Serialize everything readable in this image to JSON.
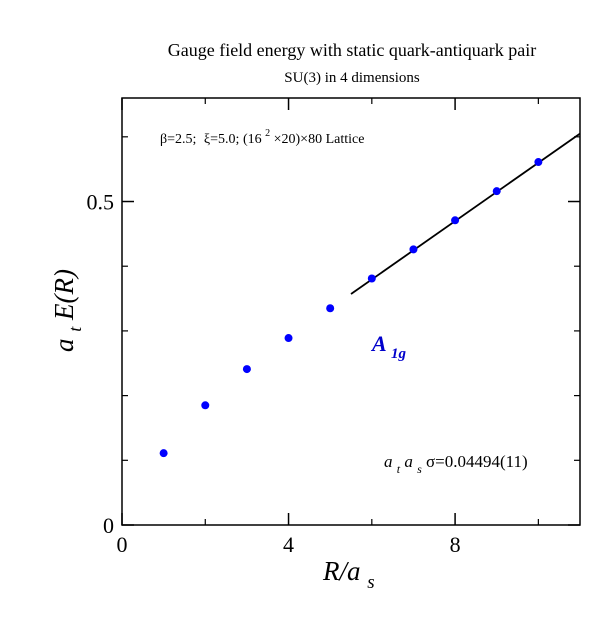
{
  "chart_data": {
    "type": "scatter",
    "title": "Gauge field energy with static quark-antiquark pair",
    "subtitle": "SU(3) in 4 dimensions",
    "xlabel": "R/a_s",
    "xlabel_parts": {
      "main": "R/a",
      "sub": "s"
    },
    "ylabel": "a_t E(R)",
    "ylabel_parts": {
      "a": "a",
      "sub": "t",
      "main": "E(R)"
    },
    "xlim": [
      0,
      11
    ],
    "ylim": [
      0,
      0.66
    ],
    "xticks": [
      0,
      4,
      8
    ],
    "xtick_labels": [
      "0",
      "4",
      "8"
    ],
    "yticks": [
      0,
      0.5
    ],
    "ytick_labels": [
      "0",
      "0.5"
    ],
    "y_minor_ticks": [
      0.1,
      0.2,
      0.3,
      0.4,
      0.6
    ],
    "x_minor_ticks": [
      2,
      6,
      10
    ],
    "grid": false,
    "colors": {
      "points": "#0000ff",
      "fit": "#000000",
      "label": "#0000cc"
    },
    "series": [
      {
        "name": "A1g",
        "values": [
          {
            "x": 1,
            "y": 0.111
          },
          {
            "x": 2,
            "y": 0.185
          },
          {
            "x": 3,
            "y": 0.241
          },
          {
            "x": 4,
            "y": 0.289
          },
          {
            "x": 5,
            "y": 0.335
          },
          {
            "x": 6,
            "y": 0.381
          },
          {
            "x": 7,
            "y": 0.426
          },
          {
            "x": 8,
            "y": 0.471
          },
          {
            "x": 9,
            "y": 0.516
          },
          {
            "x": 10,
            "y": 0.561
          }
        ]
      }
    ],
    "fit_line": {
      "x_start": 5.5,
      "x_end": 11.0,
      "y_start": 0.357,
      "y_end": 0.605
    },
    "annotations": {
      "params": "β=2.5;  ξ=5.0; (16²×20)×80 Lattice",
      "params_parts": {
        "beta": "β=2.5;",
        "xi": "ξ=5.0; (16",
        "exp": "2",
        "rest": "×20)×80 Lattice"
      },
      "series_label_main": "A",
      "series_label_sub": "1g",
      "string_tension": "a_t a_s σ=0.04494(11)",
      "string_tension_parts": {
        "a1": "a",
        "s1": "t",
        "a2": "a",
        "s2": "s",
        "value": "σ=0.04494(11)"
      }
    }
  }
}
